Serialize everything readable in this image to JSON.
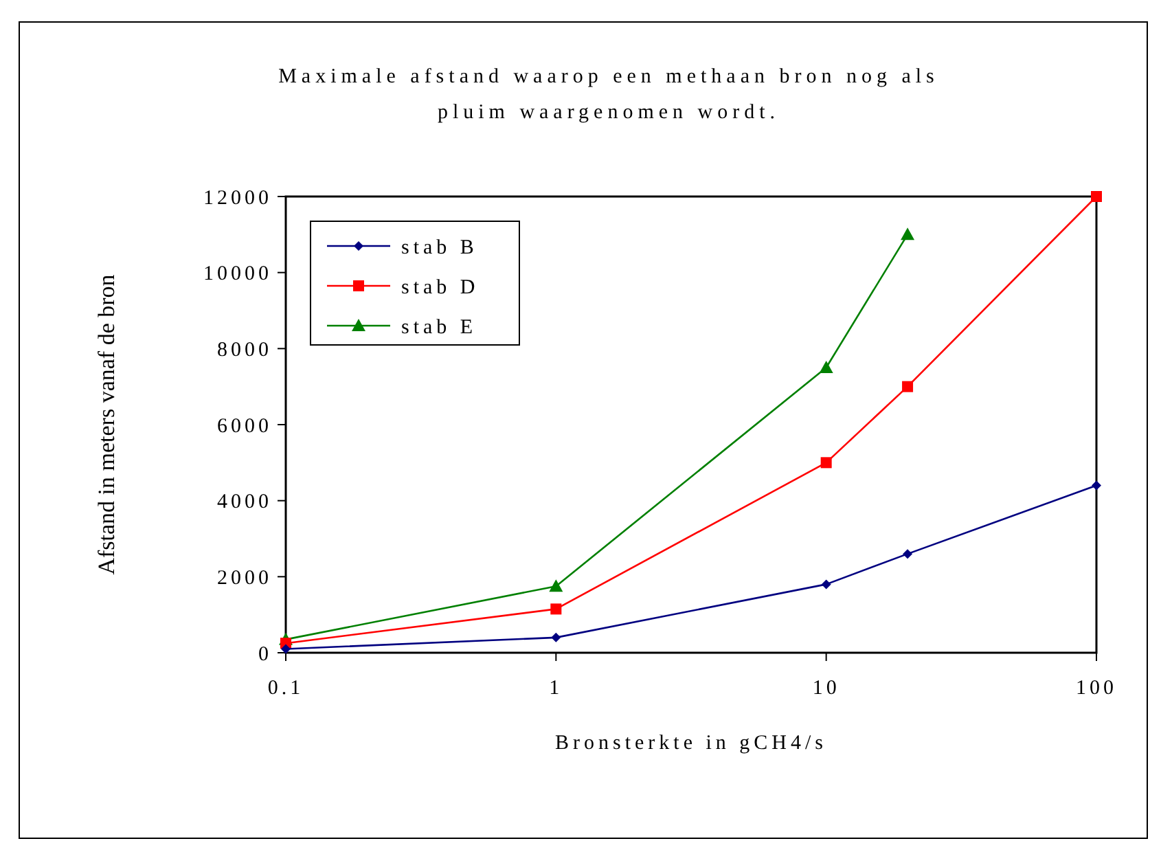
{
  "chart_data": {
    "type": "line",
    "title": "Maximale afstand waarop een methaan bron nog als pluim waargenomen wordt.",
    "xlabel": "Bronsterkte in gCH4/s",
    "ylabel": "Afstand in meters vanaf de bron",
    "log": "x",
    "x": [
      0.1,
      1,
      10,
      20,
      100
    ],
    "xlim": [
      0.1,
      100
    ],
    "xticks": [
      0.1,
      1,
      10,
      100
    ],
    "ylim": [
      0,
      12000
    ],
    "yticks": [
      0,
      2000,
      4000,
      6000,
      8000,
      10000,
      12000
    ],
    "grid": false,
    "legend": "top left",
    "series": [
      {
        "name": "stab B",
        "color": "#000080",
        "marker": "diamond",
        "values": [
          100,
          400,
          1800,
          2600,
          4400
        ]
      },
      {
        "name": "stab D",
        "color": "#ff0000",
        "marker": "square",
        "values": [
          250,
          1150,
          5000,
          7000,
          12000
        ]
      },
      {
        "name": "stab E",
        "color": "#008000",
        "marker": "triangle",
        "values": [
          350,
          1750,
          7500,
          11000,
          null
        ]
      }
    ]
  }
}
